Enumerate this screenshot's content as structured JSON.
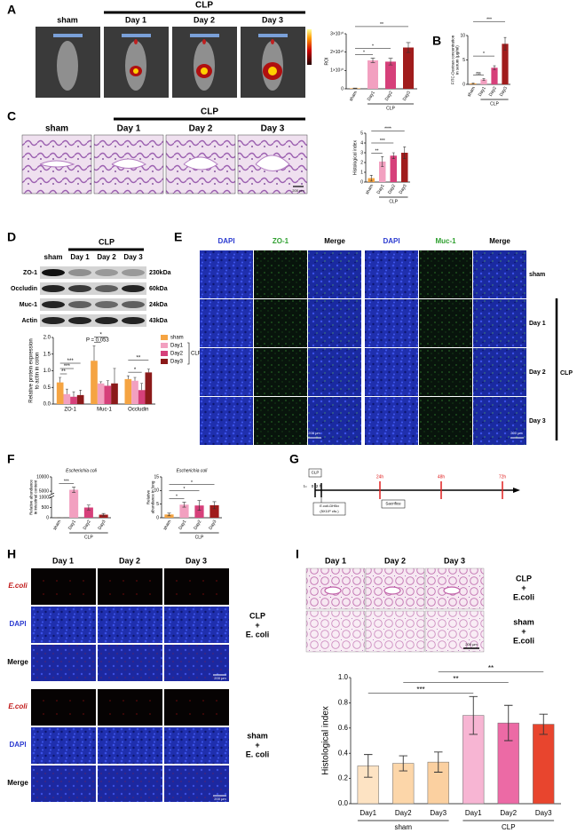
{
  "panel_labels": [
    "A",
    "B",
    "C",
    "D",
    "E",
    "F",
    "G",
    "H",
    "I"
  ],
  "A": {
    "groups": [
      "sham",
      "Day 1",
      "Day 2",
      "Day 3"
    ],
    "bracket": "CLP",
    "chart": {
      "type": "bar",
      "ylabel": "ROI",
      "categories": [
        "sham",
        "Day1",
        "Day2",
        "Day3"
      ],
      "values": [
        300000000,
        15500000000,
        14800000000,
        22500000000
      ],
      "errors": [
        100000000,
        1200000000,
        1800000000,
        2700000000
      ],
      "colors": [
        "#f5a442",
        "#f2a0c0",
        "#d6407a",
        "#a01c1c"
      ],
      "ylim": [
        0,
        30000000000
      ],
      "yticks": [
        {
          "value": 0,
          "label": "0"
        },
        {
          "value": 10000000000,
          "label": "1×10¹⁰"
        },
        {
          "value": 20000000000,
          "label": "2×10¹⁰"
        },
        {
          "value": 30000000000,
          "label": "3×10¹⁰"
        }
      ],
      "groups": [
        {
          "label": "CLP",
          "from": 1,
          "to": 3
        }
      ],
      "comparisons": [
        {
          "label": "*",
          "from": 0,
          "to": 1
        },
        {
          "label": "*",
          "from": 0,
          "to": 2
        },
        {
          "label": "**",
          "from": 0,
          "to": 3
        }
      ]
    }
  },
  "B": {
    "chart": {
      "type": "bar",
      "ylabel": "FITC-Dextran concentration in serum (μg/ml)",
      "categories": [
        "sham",
        "Day1",
        "Day2",
        "Day3"
      ],
      "values": [
        0.2,
        1.0,
        3.4,
        8.3
      ],
      "errors": [
        0.05,
        0.15,
        0.4,
        1.3
      ],
      "colors": [
        "#f5a442",
        "#f2a0c0",
        "#d6407a",
        "#a01c1c"
      ],
      "ylim": [
        0,
        10
      ],
      "yticks": [
        0,
        5,
        10
      ],
      "groups": [
        {
          "label": "CLP",
          "from": 1,
          "to": 3
        }
      ],
      "comparisons": [
        {
          "label": "ns",
          "from": 0,
          "to": 1
        },
        {
          "label": "*",
          "from": 0,
          "to": 2
        },
        {
          "label": "***",
          "from": 0,
          "to": 3
        }
      ]
    }
  },
  "C": {
    "groups": [
      "sham",
      "Day 1",
      "Day 2",
      "Day 3"
    ],
    "bracket": "CLP",
    "scale": "200 μm",
    "chart": {
      "type": "bar",
      "ylabel": "Histological index",
      "categories": [
        "sham",
        "Day1",
        "Day2",
        "Day3"
      ],
      "values": [
        0.4,
        2.1,
        2.7,
        3.0
      ],
      "errors": [
        0.3,
        0.5,
        0.3,
        0.6
      ],
      "colors": [
        "#f5a442",
        "#f2a0c0",
        "#d6407a",
        "#a01c1c"
      ],
      "ylim": [
        0,
        5
      ],
      "yticks": [
        0,
        1,
        2,
        3,
        4,
        5
      ],
      "groups": [
        {
          "label": "CLP",
          "from": 1,
          "to": 3
        }
      ],
      "comparisons": [
        {
          "label": "**",
          "from": 0,
          "to": 1
        },
        {
          "label": "***",
          "from": 0,
          "to": 2
        },
        {
          "label": "****",
          "from": 0,
          "to": 3
        }
      ]
    }
  },
  "D": {
    "lanes": [
      "sham",
      "Day 1",
      "Day 2",
      "Day 3"
    ],
    "bracket": "CLP",
    "blots": [
      {
        "protein": "ZO-1",
        "size": "230kDa"
      },
      {
        "protein": "Occludin",
        "size": "60kDa"
      },
      {
        "protein": "Muc-1",
        "size": "24kDa"
      },
      {
        "protein": "Actin",
        "size": "43kDa"
      }
    ],
    "chart": {
      "type": "grouped-bar",
      "ylabel": "Relative protein expression to actin in colon",
      "categories": [
        "ZO-1",
        "Muc-1",
        "Occludin"
      ],
      "series": [
        {
          "name": "sham",
          "color": "#f5a442",
          "values": [
            0.65,
            1.3,
            0.75
          ],
          "errors": [
            0.15,
            0.45,
            0.1
          ]
        },
        {
          "name": "Day1",
          "color": "#f2a0c0",
          "values": [
            0.3,
            0.62,
            0.7
          ],
          "errors": [
            0.15,
            0.05,
            0.1
          ]
        },
        {
          "name": "Day2",
          "color": "#d6407a",
          "values": [
            0.22,
            0.55,
            0.42
          ],
          "errors": [
            0.15,
            0.15,
            0.2
          ]
        },
        {
          "name": "Day3",
          "color": "#8b1a1a",
          "values": [
            0.27,
            0.62,
            0.95
          ],
          "errors": [
            0.15,
            0.45,
            0.1
          ]
        }
      ],
      "legend_group": "CLP",
      "ylim": [
        0,
        2
      ],
      "yticks": [
        {
          "value": 0,
          "label": "0.0"
        },
        0.5,
        {
          "value": 1,
          "label": "1.0"
        },
        1.5,
        {
          "value": 2,
          "label": "2.0"
        }
      ],
      "comparisons": [
        {
          "label": "**",
          "from": 0,
          "to": 1
        },
        {
          "label": "***",
          "from": 0,
          "to": 2
        },
        {
          "label": "***",
          "from": 0,
          "to": 3
        },
        {
          "label": "P = 0.053",
          "from": 4,
          "to": 5
        },
        {
          "label": "*",
          "from": 4,
          "to": 6
        },
        {
          "label": "*",
          "from": 8,
          "to": 10
        },
        {
          "label": "**",
          "from": 8,
          "to": 11
        }
      ]
    }
  },
  "E": {
    "columns": [
      "DAPI",
      "ZO-1",
      "Merge",
      "DAPI",
      "Muc-1",
      "Merge"
    ],
    "rows": [
      "sham",
      "Day 1",
      "Day 2",
      "Day 3"
    ],
    "bracket": "CLP",
    "scale": "200 μm"
  },
  "F": {
    "charts": [
      {
        "type": "bar",
        "title": "Escherichia coli",
        "ylabel": "Relative abundance in intestinal content",
        "categories": [
          "sham",
          "Day1",
          "Day2",
          "Day3"
        ],
        "values": [
          3,
          5500,
          500,
          150
        ],
        "errors": [
          2,
          900,
          120,
          60
        ],
        "colors": [
          "#f5a442",
          "#f2a0c0",
          "#d6407a",
          "#a01c1c"
        ],
        "ylim": [
          0,
          10000
        ],
        "axis_break": [
          1000,
          4000
        ],
        "yticks": [
          0,
          500,
          1000,
          5000,
          10000
        ],
        "groups": [
          {
            "label": "CLP",
            "from": 1,
            "to": 3
          }
        ],
        "comparisons": [
          {
            "label": "***",
            "from": 0,
            "to": 1
          }
        ]
      },
      {
        "type": "bar",
        "title": "Escherichia coli",
        "ylabel": "Relative abundance in lung",
        "categories": [
          "sham",
          "Day1",
          "Day2",
          "Day3"
        ],
        "values": [
          1.2,
          4.8,
          4.5,
          4.6
        ],
        "errors": [
          0.5,
          0.9,
          1.8,
          1.3
        ],
        "colors": [
          "#f5a442",
          "#f2a0c0",
          "#d6407a",
          "#a01c1c"
        ],
        "ylim": [
          0,
          15
        ],
        "yticks": [
          0,
          5,
          10,
          15
        ],
        "groups": [
          {
            "label": "CLP",
            "from": 1,
            "to": 3
          }
        ],
        "comparisons": [
          {
            "label": "*",
            "from": 0,
            "to": 1
          },
          {
            "label": "*",
            "from": 0,
            "to": 2
          },
          {
            "label": "*",
            "from": 0,
            "to": 3
          }
        ]
      }
    ]
  },
  "G": {
    "labels": {
      "clp": "CLP",
      "t": "t=",
      "zero": "0",
      "two": "2 h",
      "d1": "24h",
      "d2": "48h",
      "d3": "72h",
      "ecoli": "E.coli-DH5α",
      "dose": "(5X10⁸ cfu.)",
      "sacrifice": "Sacrifice"
    }
  },
  "H": {
    "columns": [
      "Day 1",
      "Day 2",
      "Day 3"
    ],
    "rows": [
      "E.coli",
      "DAPI",
      "Merge"
    ],
    "groups": [
      "CLP + E. coli",
      "sham + E. coli"
    ],
    "scale": "200 μm"
  },
  "I": {
    "columns": [
      "Day 1",
      "Day 2",
      "Day 3"
    ],
    "rows": [
      "CLP + E.coli",
      "sham + E.coli"
    ],
    "scale": "200 μm",
    "chart": {
      "type": "bar",
      "ylabel": "Histological index",
      "categories": [
        "Day1",
        "Day2",
        "Day3",
        "Day1",
        "Day2",
        "Day3"
      ],
      "values": [
        0.3,
        0.32,
        0.33,
        0.7,
        0.64,
        0.63
      ],
      "errors": [
        0.09,
        0.06,
        0.08,
        0.15,
        0.14,
        0.08
      ],
      "colors": [
        "#fde3c3",
        "#fcd6a9",
        "#fbd0a0",
        "#f7b5d3",
        "#ec6aa5",
        "#e8452e"
      ],
      "ylim": [
        0,
        1.0
      ],
      "yticks": [
        {
          "value": 0,
          "label": "0.0"
        },
        0.2,
        0.4,
        0.6,
        0.8,
        {
          "value": 1,
          "label": "1.0"
        }
      ],
      "groups": [
        {
          "label": "sham",
          "from": 0,
          "to": 2
        },
        {
          "label": "CLP",
          "from": 3,
          "to": 5
        }
      ],
      "comparisons": [
        {
          "label": "***",
          "from": 0,
          "to": 3
        },
        {
          "label": "**",
          "from": 1,
          "to": 4
        },
        {
          "label": "**",
          "from": 2,
          "to": 5
        }
      ]
    }
  }
}
